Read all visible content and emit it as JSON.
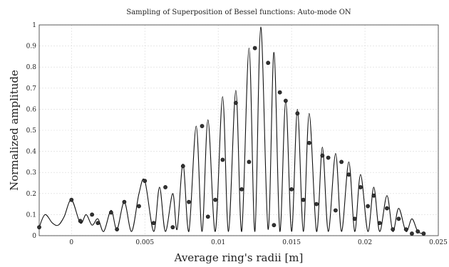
{
  "chart_data": {
    "type": "line",
    "title": "Sampling of Superposition of Bessel functions: Auto-mode ON",
    "xlabel": "Average ring's radii [m]",
    "ylabel": "Normalized amplitude",
    "xlim": [
      -0.0022,
      0.025
    ],
    "ylim": [
      0,
      1
    ],
    "xticks": [
      0,
      0.005,
      0.01,
      0.015,
      0.02,
      0.025
    ],
    "xtick_labels": [
      "0",
      "0.005",
      "0.01",
      "0.015",
      "0.02",
      "0.025"
    ],
    "yticks": [
      0,
      0.1,
      0.2,
      0.3,
      0.4,
      0.5,
      0.6,
      0.7,
      0.8,
      0.9,
      1
    ],
    "ytick_labels": [
      "0",
      "0.1",
      "0.2",
      "0.3",
      "0.4",
      "0.5",
      "0.6",
      "0.7",
      "0.8",
      "0.9",
      "1"
    ],
    "grid": true,
    "series": [
      {
        "style": "line",
        "color": "#111111",
        "x": [
          -0.0022,
          -0.0018,
          -0.0013,
          -0.0009,
          -0.0005,
          0.0,
          0.0006,
          0.001,
          0.0014,
          0.0018,
          0.0022,
          0.0027,
          0.0031,
          0.0036,
          0.0041,
          0.0046,
          0.005,
          0.0056,
          0.006,
          0.0064,
          0.0069,
          0.0072,
          0.0076,
          0.008,
          0.0085,
          0.0089,
          0.0093,
          0.0098,
          0.0103,
          0.0107,
          0.0112,
          0.0116,
          0.0121,
          0.0125,
          0.0129,
          0.0134,
          0.0138,
          0.0142,
          0.0146,
          0.015,
          0.0154,
          0.0158,
          0.0162,
          0.0167,
          0.0171,
          0.0175,
          0.018,
          0.0184,
          0.0189,
          0.0193,
          0.0197,
          0.0202,
          0.0206,
          0.021,
          0.0215,
          0.0219,
          0.0223,
          0.0228,
          0.0232,
          0.0236,
          0.024
        ],
        "y": [
          0.04,
          0.1,
          0.06,
          0.05,
          0.09,
          0.17,
          0.06,
          0.1,
          0.05,
          0.08,
          0.02,
          0.12,
          0.03,
          0.16,
          0.02,
          0.2,
          0.26,
          0.02,
          0.23,
          0.02,
          0.2,
          0.03,
          0.34,
          0.02,
          0.52,
          0.02,
          0.55,
          0.02,
          0.66,
          0.02,
          0.69,
          0.02,
          0.89,
          0.02,
          0.99,
          0.03,
          0.87,
          0.02,
          0.64,
          0.02,
          0.6,
          0.02,
          0.58,
          0.02,
          0.42,
          0.02,
          0.39,
          0.02,
          0.35,
          0.02,
          0.29,
          0.02,
          0.23,
          0.02,
          0.19,
          0.02,
          0.13,
          0.02,
          0.08,
          0.02,
          0.01
        ]
      },
      {
        "style": "markers",
        "color": "#333333",
        "x": [
          -0.0022,
          0.0,
          0.0006,
          0.0014,
          0.0018,
          0.0027,
          0.0031,
          0.0036,
          0.0046,
          0.005,
          0.0056,
          0.0064,
          0.0069,
          0.0076,
          0.008,
          0.0089,
          0.0093,
          0.0098,
          0.0103,
          0.0112,
          0.0116,
          0.0121,
          0.0125,
          0.0134,
          0.0138,
          0.0142,
          0.0146,
          0.015,
          0.0154,
          0.0158,
          0.0162,
          0.0167,
          0.0171,
          0.0175,
          0.018,
          0.0184,
          0.0189,
          0.0193,
          0.0197,
          0.0202,
          0.0206,
          0.021,
          0.0215,
          0.0219,
          0.0223,
          0.0228,
          0.0232,
          0.0236,
          0.024
        ],
        "y": [
          0.04,
          0.17,
          0.07,
          0.1,
          0.06,
          0.11,
          0.03,
          0.16,
          0.14,
          0.26,
          0.06,
          0.23,
          0.04,
          0.33,
          0.16,
          0.52,
          0.09,
          0.17,
          0.36,
          0.63,
          0.22,
          0.35,
          0.89,
          0.82,
          0.05,
          0.68,
          0.64,
          0.22,
          0.58,
          0.17,
          0.44,
          0.15,
          0.38,
          0.37,
          0.12,
          0.35,
          0.29,
          0.08,
          0.23,
          0.14,
          0.19,
          0.06,
          0.13,
          0.03,
          0.08,
          0.03,
          0.01,
          0.02,
          0.01
        ]
      }
    ]
  }
}
